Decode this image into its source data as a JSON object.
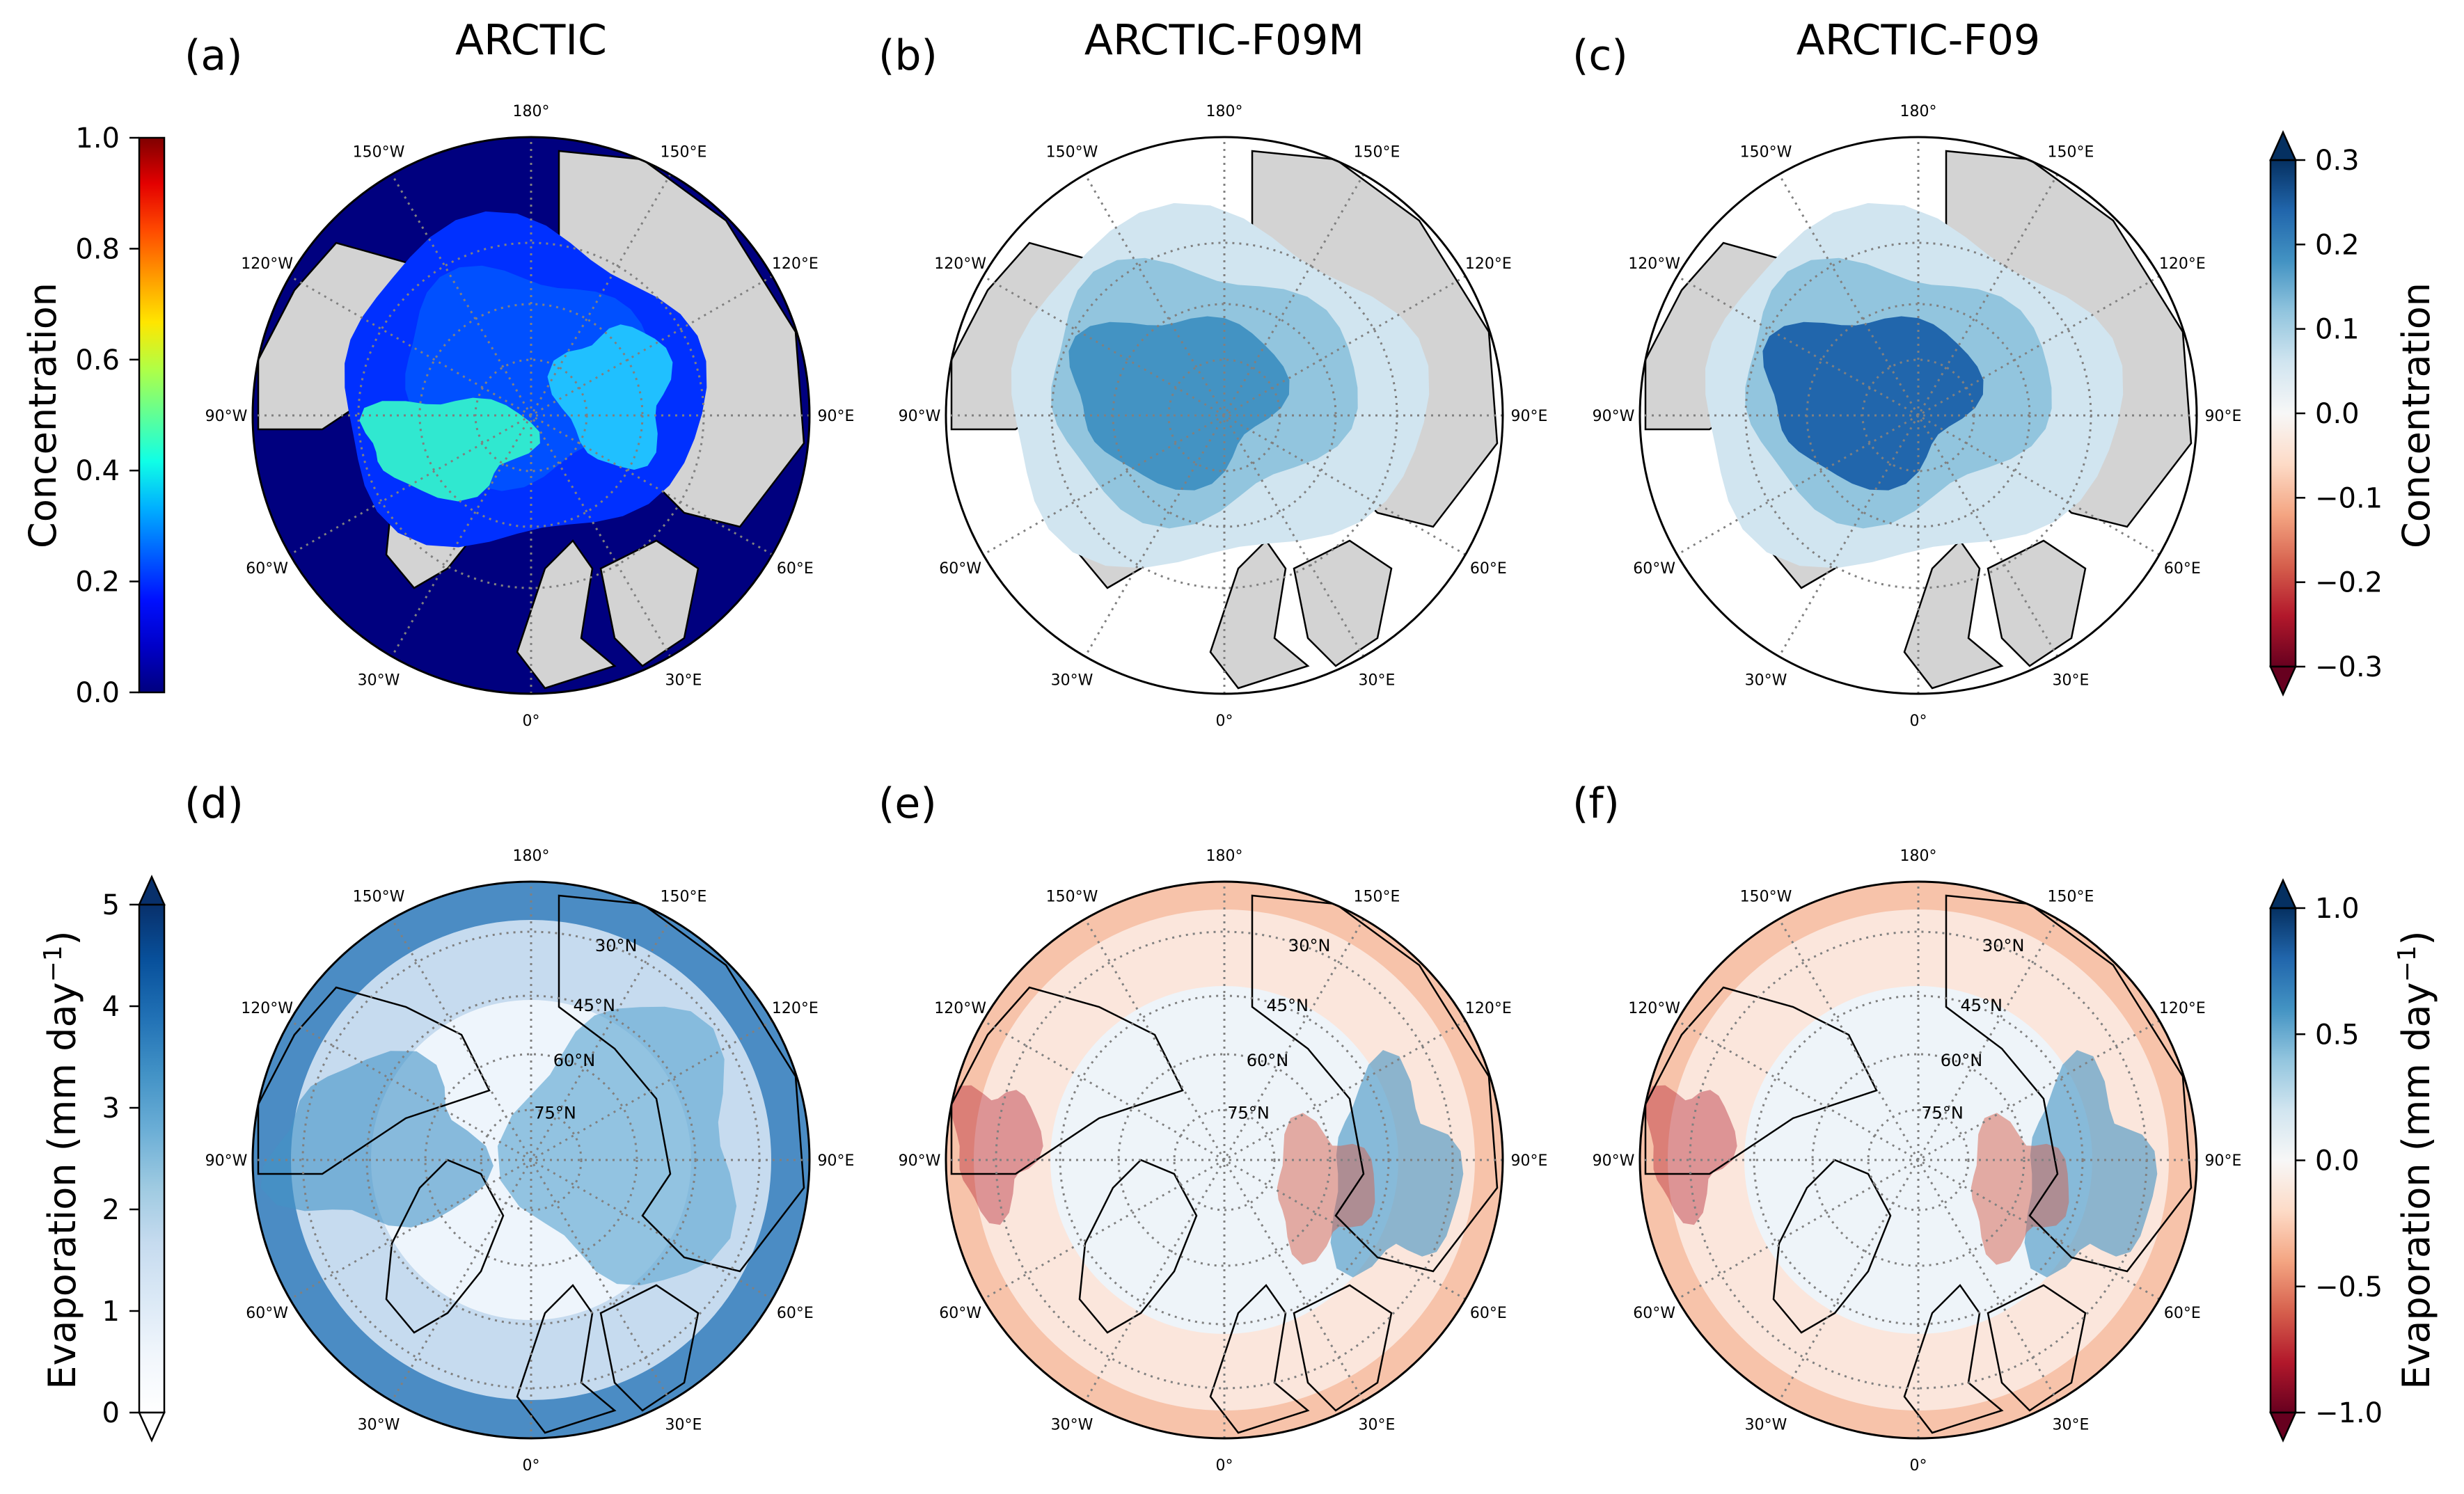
{
  "panels": [
    {
      "id": "a",
      "label": "(a)",
      "title": "ARCTIC",
      "kind": "conc_abs",
      "lat_labels": []
    },
    {
      "id": "b",
      "label": "(b)",
      "title": "ARCTIC-F09M",
      "kind": "conc_diff",
      "lat_labels": []
    },
    {
      "id": "c",
      "label": "(c)",
      "title": "ARCTIC-F09",
      "kind": "conc_diff2",
      "lat_labels": []
    },
    {
      "id": "d",
      "label": "(d)",
      "title": "",
      "kind": "evap_abs",
      "lat_labels": [
        "30°N",
        "45°N",
        "60°N",
        "75°N"
      ]
    },
    {
      "id": "e",
      "label": "(e)",
      "title": "",
      "kind": "evap_diff",
      "lat_labels": [
        "30°N",
        "45°N",
        "60°N",
        "75°N"
      ]
    },
    {
      "id": "f",
      "label": "(f)",
      "title": "",
      "kind": "evap_diff2",
      "lat_labels": [
        "30°N",
        "45°N",
        "60°N",
        "75°N"
      ]
    }
  ],
  "lon_labels": [
    {
      "deg": 180,
      "text": "180°"
    },
    {
      "deg": 150,
      "text": "150°E"
    },
    {
      "deg": 120,
      "text": "120°E"
    },
    {
      "deg": 90,
      "text": "90°E"
    },
    {
      "deg": 60,
      "text": "60°E"
    },
    {
      "deg": 30,
      "text": "30°E"
    },
    {
      "deg": 0,
      "text": "0°"
    },
    {
      "deg": -30,
      "text": "30°W"
    },
    {
      "deg": -60,
      "text": "60°W"
    },
    {
      "deg": -90,
      "text": "90°W"
    },
    {
      "deg": -120,
      "text": "120°W"
    },
    {
      "deg": -150,
      "text": "150°W"
    }
  ],
  "colorbars": [
    {
      "id": "cb-conc-abs",
      "label": "Concentration",
      "cmap": "jet",
      "ticks": [
        "1.0",
        "0.8",
        "0.6",
        "0.4",
        "0.2",
        "0.0"
      ],
      "range": [
        0,
        1
      ],
      "extend": "neither"
    },
    {
      "id": "cb-conc-diff",
      "label": "Concentration",
      "cmap": "RdBu",
      "ticks": [
        "0.3",
        "0.2",
        "0.1",
        "0.0",
        "−0.1",
        "−0.2",
        "−0.3"
      ],
      "range": [
        -0.3,
        0.3
      ],
      "extend": "both"
    },
    {
      "id": "cb-evap-abs",
      "label": "Evaporation (mm day",
      "label_sup": "−1",
      "label_tail": ")",
      "cmap": "Blues",
      "ticks": [
        "5",
        "4",
        "3",
        "2",
        "1",
        "0"
      ],
      "range": [
        0,
        5
      ],
      "extend": "both"
    },
    {
      "id": "cb-evap-diff",
      "label": "Evaporation (mm day",
      "label_sup": "−1",
      "label_tail": ")",
      "cmap": "RdBu",
      "ticks": [
        "1.0",
        "0.5",
        "0.0",
        "−0.5",
        "−1.0"
      ],
      "range": [
        -1,
        1
      ],
      "extend": "both"
    }
  ],
  "chart_data": {
    "type": "heatmap",
    "projection": "north polar stereographic",
    "panels": [
      {
        "label": "(a)",
        "title": "ARCTIC",
        "variable": "Concentration",
        "colorbar_range": [
          0,
          1
        ],
        "ticks": [
          0.0,
          0.2,
          0.4,
          0.6,
          0.8,
          1.0
        ]
      },
      {
        "label": "(b)",
        "title": "ARCTIC-F09M",
        "variable": "Concentration",
        "colorbar_range": [
          -0.3,
          0.3
        ],
        "ticks": [
          -0.3,
          -0.2,
          -0.1,
          0.0,
          0.1,
          0.2,
          0.3
        ]
      },
      {
        "label": "(c)",
        "title": "ARCTIC-F09",
        "variable": "Concentration",
        "colorbar_range": [
          -0.3,
          0.3
        ],
        "ticks": [
          -0.3,
          -0.2,
          -0.1,
          0.0,
          0.1,
          0.2,
          0.3
        ]
      },
      {
        "label": "(d)",
        "title": "",
        "variable": "Evaporation (mm day−1)",
        "colorbar_range": [
          0,
          5
        ],
        "ticks": [
          0,
          1,
          2,
          3,
          4,
          5
        ]
      },
      {
        "label": "(e)",
        "title": "",
        "variable": "Evaporation (mm day−1)",
        "colorbar_range": [
          -1,
          1
        ],
        "ticks": [
          -1.0,
          -0.5,
          0.0,
          0.5,
          1.0
        ]
      },
      {
        "label": "(f)",
        "title": "",
        "variable": "Evaporation (mm day−1)",
        "colorbar_range": [
          -1,
          1
        ],
        "ticks": [
          -1.0,
          -0.5,
          0.0,
          0.5,
          1.0
        ]
      }
    ]
  }
}
